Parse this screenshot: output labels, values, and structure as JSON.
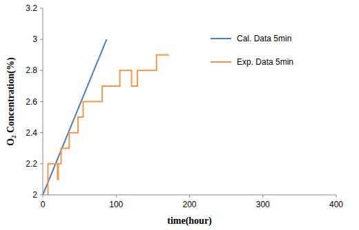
{
  "chart_data": {
    "type": "line",
    "x_label": "time(hour)",
    "y_label": "O₂ Concentration(%)",
    "xlim": [
      0,
      400
    ],
    "xticks": [
      0,
      100,
      200,
      300,
      400
    ],
    "ylim": [
      2,
      3.2
    ],
    "yticks": [
      2,
      2.2,
      2.4,
      2.6,
      2.8,
      3,
      3.2
    ],
    "grid": false,
    "legend": "top-right",
    "series": [
      {
        "name": "Cal. Data 5min",
        "color": "#4a7ebb",
        "x": [
          0,
          87
        ],
        "values": [
          2,
          3
        ]
      },
      {
        "name": "Exp. Data 5min",
        "color": "#f79646",
        "x": [
          7,
          7,
          20,
          20,
          21,
          21,
          25,
          25,
          36,
          36,
          48,
          48,
          55,
          55,
          81,
          81,
          105,
          105,
          121,
          121,
          129,
          129,
          155,
          155,
          172
        ],
        "values": [
          2.0,
          2.2,
          2.2,
          2.1,
          2.1,
          2.2,
          2.2,
          2.3,
          2.3,
          2.4,
          2.4,
          2.5,
          2.5,
          2.6,
          2.6,
          2.7,
          2.7,
          2.8,
          2.8,
          2.7,
          2.7,
          2.8,
          2.8,
          2.9,
          2.9
        ]
      }
    ]
  }
}
